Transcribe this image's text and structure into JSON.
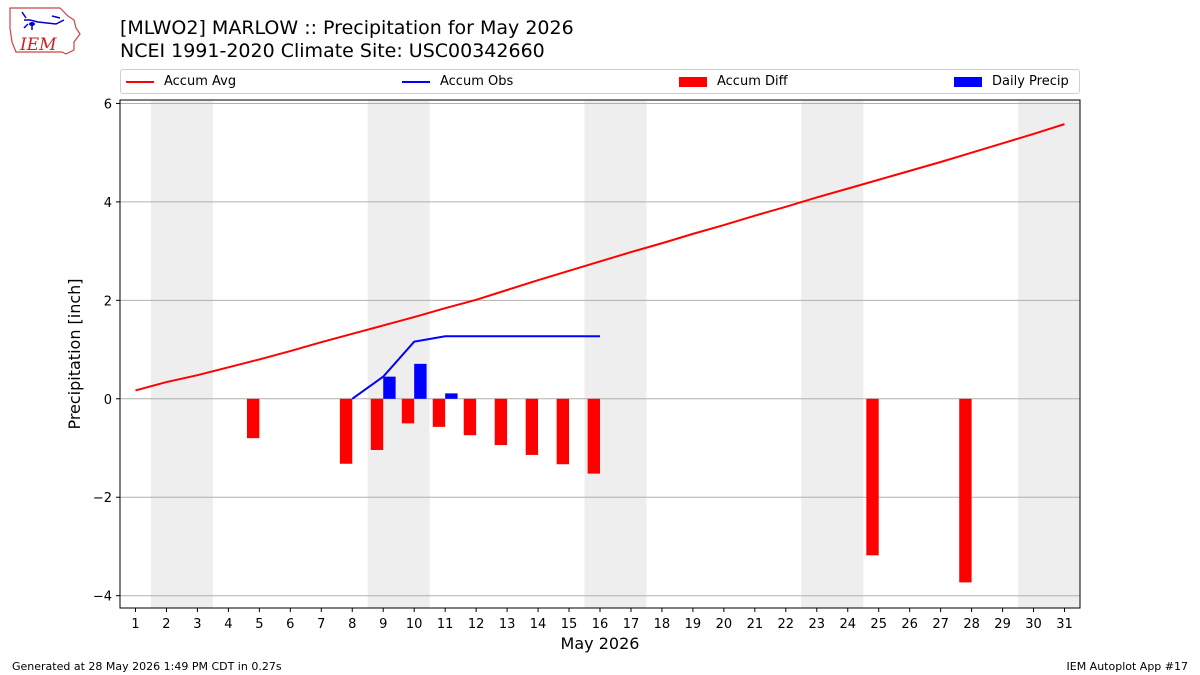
{
  "logo": {
    "text": "IEM",
    "name": "iem-logo"
  },
  "header": {
    "title": "[MLWO2] MARLOW :: Precipitation for May 2026",
    "subtitle": "NCEI 1991-2020 Climate Site: USC00342660"
  },
  "footer": {
    "left": "Generated at 28 May 2026 1:49 PM CDT in 0.27s",
    "right": "IEM Autoplot App #17"
  },
  "chart_data": {
    "type": "bar",
    "xlabel": "May 2026",
    "ylabel": "Precipitation [inch]",
    "xlim": [
      0.5,
      31.5
    ],
    "ylim": [
      -4.25,
      6.07
    ],
    "yticks": [
      -4,
      -2,
      0,
      2,
      4,
      6
    ],
    "ytick_labels": [
      "−4",
      "−2",
      "0",
      "2",
      "4",
      "6"
    ],
    "categories": [
      "1",
      "2",
      "3",
      "4",
      "5",
      "6",
      "7",
      "8",
      "9",
      "10",
      "11",
      "12",
      "13",
      "14",
      "15",
      "16",
      "17",
      "18",
      "19",
      "20",
      "21",
      "22",
      "23",
      "24",
      "25",
      "26",
      "27",
      "28",
      "29",
      "30",
      "31"
    ],
    "grid": "horizontal",
    "legend_position": "top",
    "weekend_shading": [
      [
        1.5,
        3.5
      ],
      [
        8.5,
        10.5
      ],
      [
        15.5,
        17.5
      ],
      [
        22.5,
        24.5
      ],
      [
        29.5,
        31.5
      ]
    ],
    "series": [
      {
        "name": "Accum Avg",
        "kind": "line",
        "color": "#ff0000",
        "x": [
          1,
          2,
          3,
          4,
          5,
          6,
          7,
          8,
          9,
          10,
          11,
          12,
          13,
          14,
          15,
          16,
          17,
          18,
          19,
          20,
          21,
          22,
          23,
          24,
          25,
          26,
          27,
          28,
          29,
          30,
          31
        ],
        "values": [
          0.17,
          0.34,
          0.48,
          0.64,
          0.8,
          0.97,
          1.15,
          1.32,
          1.49,
          1.66,
          1.84,
          2.01,
          2.21,
          2.41,
          2.6,
          2.79,
          2.98,
          3.16,
          3.35,
          3.53,
          3.72,
          3.9,
          4.09,
          4.27,
          4.45,
          4.63,
          4.81,
          5.0,
          5.19,
          5.38,
          5.58
        ]
      },
      {
        "name": "Accum Obs",
        "kind": "line",
        "color": "#0000ff",
        "x": [
          8,
          9,
          10,
          11,
          12,
          13,
          14,
          15,
          16
        ],
        "values": [
          0.0,
          0.45,
          1.16,
          1.27,
          1.27,
          1.27,
          1.27,
          1.27,
          1.27
        ]
      },
      {
        "name": "Accum Diff",
        "kind": "bar",
        "color": "#ff0000",
        "offset": -0.2,
        "x": [
          5,
          8,
          9,
          10,
          11,
          12,
          13,
          14,
          15,
          16,
          25,
          28
        ],
        "values": [
          -0.8,
          -1.32,
          -1.04,
          -0.5,
          -0.57,
          -0.74,
          -0.94,
          -1.14,
          -1.33,
          -1.52,
          -3.18,
          -3.73
        ]
      },
      {
        "name": "Daily Precip",
        "kind": "bar",
        "color": "#0000ff",
        "offset": 0.2,
        "x": [
          9,
          10,
          11
        ],
        "values": [
          0.45,
          0.71,
          0.11
        ]
      }
    ]
  }
}
